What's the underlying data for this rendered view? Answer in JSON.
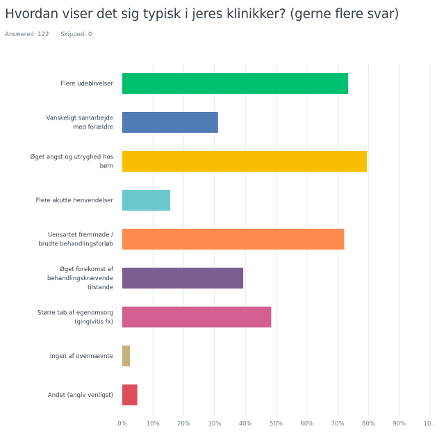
{
  "title": "Hvordan viser det sig typisk i jeres klinikker? (gerne flere svar)",
  "answered": "Answered: 122",
  "skipped": "Skipped: 0",
  "chart_data": {
    "type": "bar",
    "orientation": "horizontal",
    "categories": [
      [
        "Flere udeblivelser"
      ],
      [
        "Vanskeligt samarbejde",
        "med forældre"
      ],
      [
        "Øget angst og utryghed hos",
        "børn"
      ],
      [
        "Flere akutte henvendelser"
      ],
      [
        "Uensartet fremmøde /",
        "brudte behandlingsforløb"
      ],
      [
        "Øget forekomst af",
        "behandlingskrævende",
        "tilstande"
      ],
      [
        "Større tab af egenomsorg",
        "(gingivitis fx)"
      ],
      [
        "Ingen af ovennævnte"
      ],
      [
        "Andet (angiv venligst)"
      ]
    ],
    "values": [
      73.4,
      31.1,
      79.5,
      15.6,
      72.1,
      39.3,
      48.4,
      2.5,
      4.9
    ],
    "colors": [
      "#00bf6f",
      "#507cb6",
      "#f9be00",
      "#6bc8cd",
      "#ff8b4f",
      "#7d5e90",
      "#d25f90",
      "#c4b27d",
      "#dd4e5b"
    ],
    "xlim": [
      0,
      100
    ],
    "tick_labels": [
      "0%",
      "10%",
      "20%",
      "30%",
      "40%",
      "50%",
      "60%",
      "70%",
      "80%",
      "90%",
      "10..."
    ],
    "grid": true,
    "xlabel": "",
    "ylabel": ""
  }
}
